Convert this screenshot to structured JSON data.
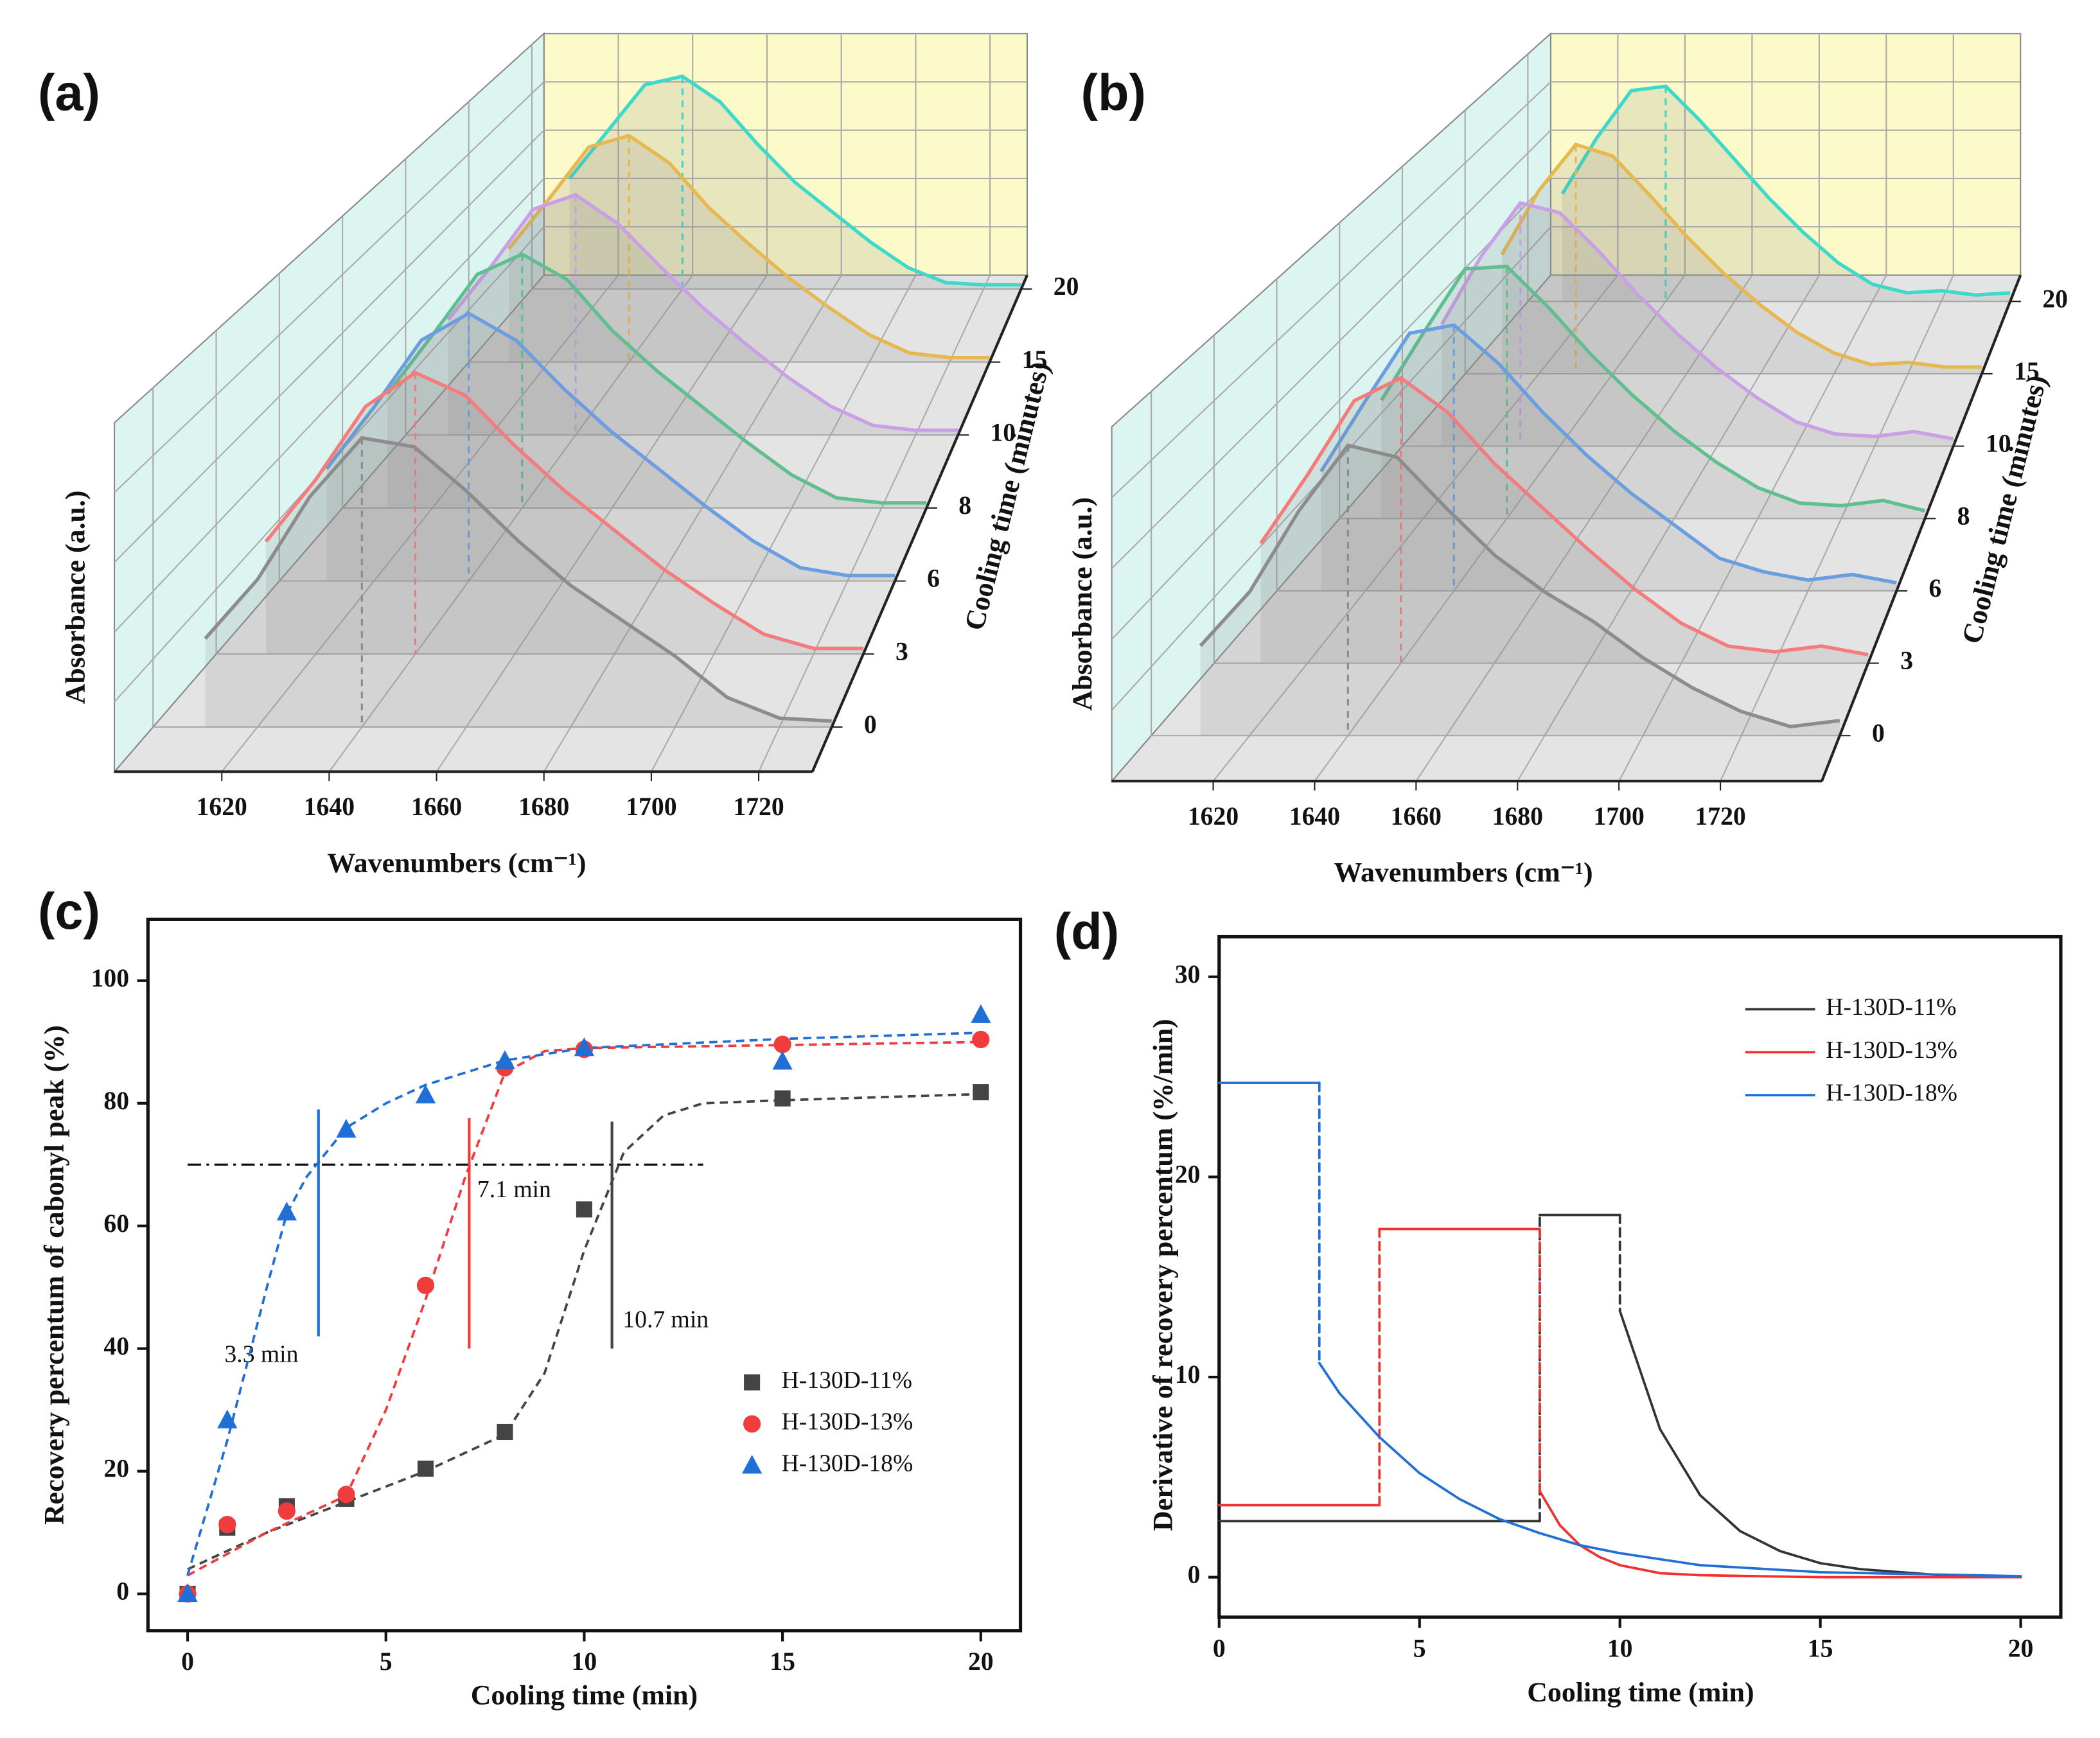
{
  "chart_data": [
    {
      "type": "waterfall3d",
      "panel": "(a)",
      "x_label": "Wavenumbers (cm⁻¹)",
      "y_label": "Absorbance (a.u.)",
      "z_label": "Cooling time (minutes)",
      "x": [
        1610,
        1620,
        1630,
        1640,
        1650,
        1660,
        1670,
        1680,
        1690,
        1700,
        1710,
        1720,
        1730
      ],
      "xlim": [
        1600,
        1730
      ],
      "xticks": [
        1620,
        1640,
        1660,
        1680,
        1700,
        1720
      ],
      "ylim": [
        0,
        1.15
      ],
      "series": [
        {
          "name": "0",
          "color": "#8c8c8c",
          "values": [
            0.3,
            0.5,
            0.78,
            0.98,
            0.95,
            0.8,
            0.63,
            0.48,
            0.36,
            0.24,
            0.1,
            0.03,
            0.02
          ]
        },
        {
          "name": "3",
          "color": "#f47c7c",
          "values": [
            0.4,
            0.62,
            0.88,
            1.0,
            0.92,
            0.74,
            0.58,
            0.44,
            0.3,
            0.18,
            0.07,
            0.02,
            0.02
          ]
        },
        {
          "name": "6",
          "color": "#6a9ee0",
          "values": [
            0.42,
            0.65,
            0.9,
            1.0,
            0.9,
            0.72,
            0.56,
            0.42,
            0.28,
            0.15,
            0.05,
            0.02,
            0.02
          ]
        },
        {
          "name": "8",
          "color": "#5fbf8f",
          "values": [
            0.45,
            0.68,
            0.92,
            1.0,
            0.9,
            0.7,
            0.54,
            0.4,
            0.26,
            0.13,
            0.04,
            0.02,
            0.02
          ]
        },
        {
          "name": "10",
          "color": "#c9a0e6",
          "values": [
            0.48,
            0.7,
            0.94,
            1.0,
            0.88,
            0.7,
            0.53,
            0.38,
            0.24,
            0.12,
            0.04,
            0.02,
            0.02
          ]
        },
        {
          "name": "15",
          "color": "#e6b84f",
          "values": [
            0.5,
            0.72,
            0.95,
            1.0,
            0.88,
            0.68,
            0.52,
            0.37,
            0.24,
            0.12,
            0.04,
            0.02,
            0.02
          ]
        },
        {
          "name": "20",
          "color": "#3fd9c9",
          "values": [
            0.52,
            0.74,
            0.96,
            1.0,
            0.88,
            0.68,
            0.5,
            0.36,
            0.22,
            0.1,
            0.03,
            0.02,
            0.02
          ]
        }
      ]
    },
    {
      "type": "waterfall3d",
      "panel": "(b)",
      "x_label": "Wavenumbers (cm⁻¹)",
      "y_label": "Absorbance (a.u.)",
      "z_label": "Cooling time (minutes)",
      "x": [
        1610,
        1620,
        1630,
        1640,
        1650,
        1660,
        1670,
        1680,
        1690,
        1700,
        1710,
        1720,
        1730,
        1740
      ],
      "xlim": [
        1600,
        1740
      ],
      "xticks": [
        1620,
        1640,
        1660,
        1680,
        1700,
        1720
      ],
      "ylim": [
        0,
        1.15
      ],
      "series": [
        {
          "name": "0",
          "color": "#8c8c8c",
          "values": [
            0.3,
            0.48,
            0.75,
            0.97,
            0.93,
            0.76,
            0.6,
            0.48,
            0.38,
            0.26,
            0.16,
            0.08,
            0.03,
            0.05
          ]
        },
        {
          "name": "3",
          "color": "#f47c7c",
          "values": [
            0.42,
            0.66,
            0.92,
            1.0,
            0.88,
            0.7,
            0.55,
            0.4,
            0.26,
            0.14,
            0.06,
            0.04,
            0.06,
            0.03
          ]
        },
        {
          "name": "6",
          "color": "#6a9ee0",
          "values": [
            0.44,
            0.7,
            0.95,
            0.98,
            0.84,
            0.66,
            0.5,
            0.36,
            0.24,
            0.12,
            0.07,
            0.04,
            0.06,
            0.03
          ]
        },
        {
          "name": "8",
          "color": "#5fbf8f",
          "values": [
            0.46,
            0.72,
            0.97,
            0.98,
            0.82,
            0.64,
            0.48,
            0.34,
            0.22,
            0.12,
            0.06,
            0.05,
            0.07,
            0.03
          ]
        },
        {
          "name": "10",
          "color": "#c9a0e6",
          "values": [
            0.5,
            0.78,
            1.0,
            0.96,
            0.8,
            0.62,
            0.46,
            0.32,
            0.2,
            0.1,
            0.05,
            0.04,
            0.06,
            0.03
          ]
        },
        {
          "name": "15",
          "color": "#e6b84f",
          "values": [
            0.52,
            0.8,
            1.0,
            0.95,
            0.78,
            0.6,
            0.44,
            0.3,
            0.18,
            0.09,
            0.04,
            0.05,
            0.03,
            0.03
          ]
        },
        {
          "name": "20",
          "color": "#3fd9c9",
          "values": [
            0.5,
            0.76,
            0.98,
            1.0,
            0.84,
            0.66,
            0.48,
            0.32,
            0.18,
            0.08,
            0.04,
            0.05,
            0.03,
            0.04
          ]
        }
      ]
    },
    {
      "type": "scatter",
      "panel": "(c)",
      "x_label": "Cooling time (min)",
      "y_label": "Recovery percentum of cabonyl peak (%)",
      "x": [
        0,
        1,
        2.5,
        4,
        6,
        8,
        10,
        15,
        20
      ],
      "xlim": [
        -1,
        21
      ],
      "xticks": [
        0,
        5,
        10,
        15,
        20
      ],
      "ylim": [
        -6,
        110
      ],
      "yticks": [
        0,
        20,
        40,
        60,
        80,
        100
      ],
      "series": [
        {
          "name": "H-130D-11%",
          "color": "#444444",
          "marker": "square",
          "values": [
            0,
            10.8,
            14.3,
            15.5,
            20.4,
            26.4,
            62.7,
            80.8,
            81.8
          ],
          "fit": {
            "x": [
              0,
              2,
              4,
              6,
              8,
              9,
              10,
              11,
              12,
              13,
              15,
              20
            ],
            "values": [
              4,
              10,
              15,
              20,
              26,
              36,
              56,
              72,
              78,
              80,
              80.5,
              81.5
            ]
          }
        },
        {
          "name": "H-130D-13%",
          "color": "#f03c3c",
          "marker": "circle",
          "values": [
            0,
            11.3,
            13.5,
            16.2,
            50.3,
            85.8,
            88.8,
            89.6,
            90.4
          ],
          "fit": {
            "x": [
              0,
              2,
              4,
              5,
              6,
              7,
              8,
              9,
              10,
              15,
              20
            ],
            "values": [
              3,
              10,
              16,
              30,
              48,
              68,
              85,
              88.5,
              89,
              89.5,
              90
            ]
          }
        },
        {
          "name": "H-130D-18%",
          "color": "#1f6fd6",
          "marker": "triangle",
          "values": [
            0,
            28.3,
            62.2,
            75.7,
            81.3,
            86.9,
            89,
            86.8,
            94.4
          ],
          "fit": {
            "x": [
              0,
              1,
              2,
              2.5,
              3,
              4,
              5,
              6,
              8,
              10,
              15,
              20
            ],
            "values": [
              3,
              25,
              50,
              62,
              68,
              76,
              80,
              83,
              87,
              89,
              90.5,
              91.5
            ]
          }
        }
      ],
      "hline": {
        "y": 70,
        "x": [
          0,
          13
        ]
      },
      "annotations": [
        {
          "text": "3.3 min",
          "x": 3.3,
          "y": [
            42,
            79
          ],
          "color": "#1f6fd6"
        },
        {
          "text": "7.1 min",
          "x": 7.1,
          "y": [
            40,
            77.6
          ],
          "color": "#f03c3c"
        },
        {
          "text": "10.7 min",
          "x": 10.7,
          "y": [
            40,
            77
          ],
          "color": "#444444"
        }
      ]
    },
    {
      "type": "line",
      "panel": "(d)",
      "x_label": "Cooling time (min)",
      "y_label": "Derivative of recovery percentum (%/min)",
      "xlim": [
        0,
        21
      ],
      "xticks": [
        0,
        5,
        10,
        15,
        20
      ],
      "ylim": [
        -2,
        32
      ],
      "yticks": [
        0,
        10,
        20,
        30
      ],
      "series": [
        {
          "name": "H-130D-11%",
          "color": "#333333",
          "x": [
            0,
            8,
            8,
            10,
            10,
            11,
            12,
            13,
            14,
            15,
            16,
            18,
            20
          ],
          "values": [
            2.8,
            2.8,
            18.1,
            18.1,
            13.3,
            7.4,
            4.1,
            2.3,
            1.3,
            0.7,
            0.4,
            0.1,
            0
          ]
        },
        {
          "name": "H-130D-13%",
          "color": "#f03030",
          "x": [
            0,
            4,
            4,
            8,
            8,
            8.5,
            9,
            9.5,
            10,
            11,
            12,
            15,
            20
          ],
          "values": [
            3.6,
            3.6,
            17.4,
            17.4,
            4.3,
            2.6,
            1.6,
            1.0,
            0.6,
            0.2,
            0.1,
            0,
            0
          ]
        },
        {
          "name": "H-130D-18%",
          "color": "#1f6fd6",
          "x": [
            0,
            2.5,
            2.5,
            3,
            4,
            5,
            6,
            7,
            8,
            9,
            10,
            12,
            15,
            20
          ],
          "values": [
            24.7,
            24.7,
            10.7,
            9.2,
            7.0,
            5.2,
            3.9,
            2.9,
            2.2,
            1.6,
            1.2,
            0.6,
            0.25,
            0.05
          ]
        }
      ]
    }
  ]
}
